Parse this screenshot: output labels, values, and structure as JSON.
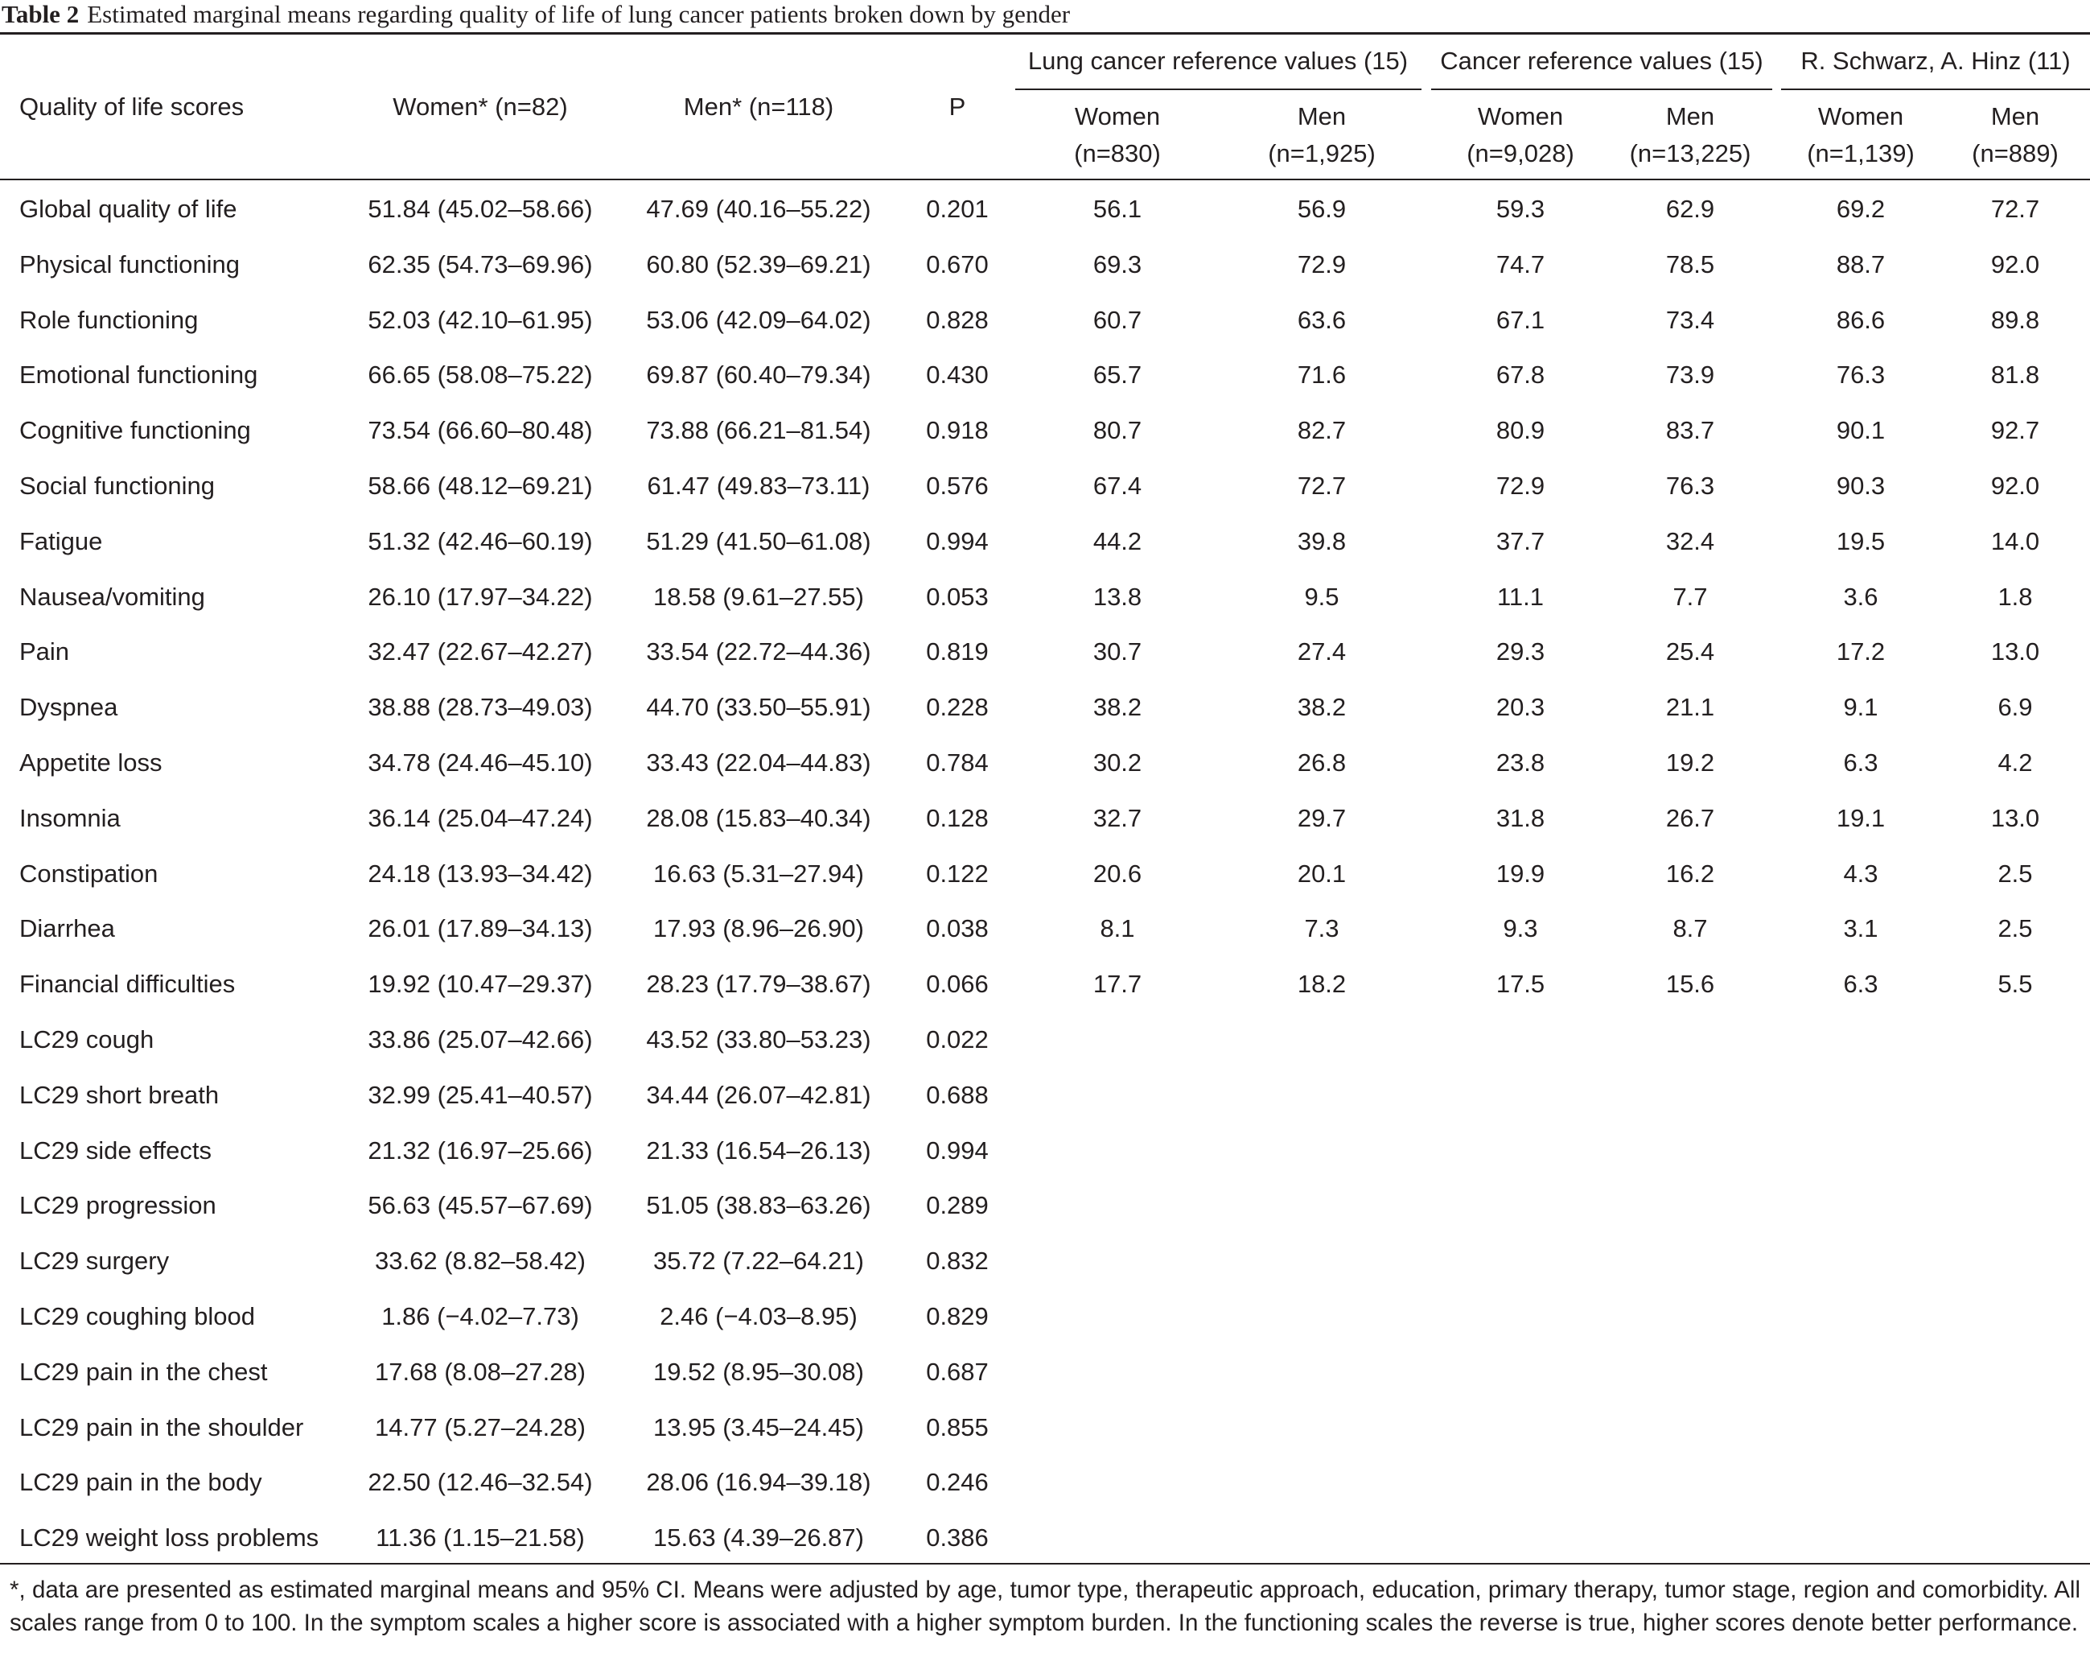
{
  "caption": {
    "label": "Table 2",
    "title": "Estimated marginal means regarding quality of life of lung cancer patients broken down by gender"
  },
  "header": {
    "scores": "Quality of life scores",
    "women": "Women* (n=82)",
    "men": "Men* (n=118)",
    "p": "P",
    "groups": [
      {
        "label": "Lung cancer reference values (15)",
        "women": "Women",
        "women_n": "(n=830)",
        "men": "Men",
        "men_n": "(n=1,925)"
      },
      {
        "label": "Cancer reference values (15)",
        "women": "Women",
        "women_n": "(n=9,028)",
        "men": "Men",
        "men_n": "(n=13,225)"
      },
      {
        "label": "R. Schwarz, A. Hinz (11)",
        "women": "Women",
        "women_n": "(n=1,139)",
        "men": "Men",
        "men_n": "(n=889)"
      }
    ]
  },
  "rows": [
    {
      "name": "Global quality of life",
      "women": "51.84 (45.02–58.66)",
      "men": "47.69 (40.16–55.22)",
      "p": "0.201",
      "lung_w": "56.1",
      "lung_m": "56.9",
      "canc_w": "59.3",
      "canc_m": "62.9",
      "sh_w": "69.2",
      "sh_m": "72.7"
    },
    {
      "name": "Physical functioning",
      "women": "62.35 (54.73–69.96)",
      "men": "60.80 (52.39–69.21)",
      "p": "0.670",
      "lung_w": "69.3",
      "lung_m": "72.9",
      "canc_w": "74.7",
      "canc_m": "78.5",
      "sh_w": "88.7",
      "sh_m": "92.0"
    },
    {
      "name": "Role functioning",
      "women": "52.03 (42.10–61.95)",
      "men": "53.06 (42.09–64.02)",
      "p": "0.828",
      "lung_w": "60.7",
      "lung_m": "63.6",
      "canc_w": "67.1",
      "canc_m": "73.4",
      "sh_w": "86.6",
      "sh_m": "89.8"
    },
    {
      "name": "Emotional functioning",
      "women": "66.65 (58.08–75.22)",
      "men": "69.87 (60.40–79.34)",
      "p": "0.430",
      "lung_w": "65.7",
      "lung_m": "71.6",
      "canc_w": "67.8",
      "canc_m": "73.9",
      "sh_w": "76.3",
      "sh_m": "81.8"
    },
    {
      "name": "Cognitive functioning",
      "women": "73.54 (66.60–80.48)",
      "men": "73.88 (66.21–81.54)",
      "p": "0.918",
      "lung_w": "80.7",
      "lung_m": "82.7",
      "canc_w": "80.9",
      "canc_m": "83.7",
      "sh_w": "90.1",
      "sh_m": "92.7"
    },
    {
      "name": "Social functioning",
      "women": "58.66 (48.12–69.21)",
      "men": "61.47 (49.83–73.11)",
      "p": "0.576",
      "lung_w": "67.4",
      "lung_m": "72.7",
      "canc_w": "72.9",
      "canc_m": "76.3",
      "sh_w": "90.3",
      "sh_m": "92.0"
    },
    {
      "name": "Fatigue",
      "women": "51.32 (42.46–60.19)",
      "men": "51.29 (41.50–61.08)",
      "p": "0.994",
      "lung_w": "44.2",
      "lung_m": "39.8",
      "canc_w": "37.7",
      "canc_m": "32.4",
      "sh_w": "19.5",
      "sh_m": "14.0"
    },
    {
      "name": "Nausea/vomiting",
      "women": "26.10 (17.97–34.22)",
      "men": "18.58 (9.61–27.55)",
      "p": "0.053",
      "lung_w": "13.8",
      "lung_m": "9.5",
      "canc_w": "11.1",
      "canc_m": "7.7",
      "sh_w": "3.6",
      "sh_m": "1.8"
    },
    {
      "name": "Pain",
      "women": "32.47 (22.67–42.27)",
      "men": "33.54 (22.72–44.36)",
      "p": "0.819",
      "lung_w": "30.7",
      "lung_m": "27.4",
      "canc_w": "29.3",
      "canc_m": "25.4",
      "sh_w": "17.2",
      "sh_m": "13.0"
    },
    {
      "name": "Dyspnea",
      "women": "38.88 (28.73–49.03)",
      "men": "44.70 (33.50–55.91)",
      "p": "0.228",
      "lung_w": "38.2",
      "lung_m": "38.2",
      "canc_w": "20.3",
      "canc_m": "21.1",
      "sh_w": "9.1",
      "sh_m": "6.9"
    },
    {
      "name": "Appetite loss",
      "women": "34.78 (24.46–45.10)",
      "men": "33.43 (22.04–44.83)",
      "p": "0.784",
      "lung_w": "30.2",
      "lung_m": "26.8",
      "canc_w": "23.8",
      "canc_m": "19.2",
      "sh_w": "6.3",
      "sh_m": "4.2"
    },
    {
      "name": "Insomnia",
      "women": "36.14 (25.04–47.24)",
      "men": "28.08 (15.83–40.34)",
      "p": "0.128",
      "lung_w": "32.7",
      "lung_m": "29.7",
      "canc_w": "31.8",
      "canc_m": "26.7",
      "sh_w": "19.1",
      "sh_m": "13.0"
    },
    {
      "name": "Constipation",
      "women": "24.18 (13.93–34.42)",
      "men": "16.63 (5.31–27.94)",
      "p": "0.122",
      "lung_w": "20.6",
      "lung_m": "20.1",
      "canc_w": "19.9",
      "canc_m": "16.2",
      "sh_w": "4.3",
      "sh_m": "2.5"
    },
    {
      "name": "Diarrhea",
      "women": "26.01 (17.89–34.13)",
      "men": "17.93 (8.96–26.90)",
      "p": "0.038",
      "lung_w": "8.1",
      "lung_m": "7.3",
      "canc_w": "9.3",
      "canc_m": "8.7",
      "sh_w": "3.1",
      "sh_m": "2.5"
    },
    {
      "name": "Financial difficulties",
      "women": "19.92 (10.47–29.37)",
      "men": "28.23 (17.79–38.67)",
      "p": "0.066",
      "lung_w": "17.7",
      "lung_m": "18.2",
      "canc_w": "17.5",
      "canc_m": "15.6",
      "sh_w": "6.3",
      "sh_m": "5.5"
    },
    {
      "name": "LC29 cough",
      "women": "33.86 (25.07–42.66)",
      "men": "43.52 (33.80–53.23)",
      "p": "0.022",
      "lung_w": "",
      "lung_m": "",
      "canc_w": "",
      "canc_m": "",
      "sh_w": "",
      "sh_m": ""
    },
    {
      "name": "LC29 short breath",
      "women": "32.99 (25.41–40.57)",
      "men": "34.44 (26.07–42.81)",
      "p": "0.688",
      "lung_w": "",
      "lung_m": "",
      "canc_w": "",
      "canc_m": "",
      "sh_w": "",
      "sh_m": ""
    },
    {
      "name": "LC29 side effects",
      "women": "21.32 (16.97–25.66)",
      "men": "21.33 (16.54–26.13)",
      "p": "0.994",
      "lung_w": "",
      "lung_m": "",
      "canc_w": "",
      "canc_m": "",
      "sh_w": "",
      "sh_m": ""
    },
    {
      "name": "LC29 progression",
      "women": "56.63 (45.57–67.69)",
      "men": "51.05 (38.83–63.26)",
      "p": "0.289",
      "lung_w": "",
      "lung_m": "",
      "canc_w": "",
      "canc_m": "",
      "sh_w": "",
      "sh_m": ""
    },
    {
      "name": "LC29 surgery",
      "women": "33.62 (8.82–58.42)",
      "men": "35.72 (7.22–64.21)",
      "p": "0.832",
      "lung_w": "",
      "lung_m": "",
      "canc_w": "",
      "canc_m": "",
      "sh_w": "",
      "sh_m": ""
    },
    {
      "name": "LC29 coughing blood",
      "women": "1.86 (−4.02–7.73)",
      "men": "2.46 (−4.03–8.95)",
      "p": "0.829",
      "lung_w": "",
      "lung_m": "",
      "canc_w": "",
      "canc_m": "",
      "sh_w": "",
      "sh_m": ""
    },
    {
      "name": "LC29 pain in the chest",
      "women": "17.68 (8.08–27.28)",
      "men": "19.52 (8.95–30.08)",
      "p": "0.687",
      "lung_w": "",
      "lung_m": "",
      "canc_w": "",
      "canc_m": "",
      "sh_w": "",
      "sh_m": ""
    },
    {
      "name": "LC29 pain in the shoulder",
      "women": "14.77 (5.27–24.28)",
      "men": "13.95 (3.45–24.45)",
      "p": "0.855",
      "lung_w": "",
      "lung_m": "",
      "canc_w": "",
      "canc_m": "",
      "sh_w": "",
      "sh_m": ""
    },
    {
      "name": "LC29 pain in the body",
      "women": "22.50 (12.46–32.54)",
      "men": "28.06 (16.94–39.18)",
      "p": "0.246",
      "lung_w": "",
      "lung_m": "",
      "canc_w": "",
      "canc_m": "",
      "sh_w": "",
      "sh_m": ""
    },
    {
      "name": "LC29 weight loss problems",
      "women": "11.36 (1.15–21.58)",
      "men": "15.63 (4.39–26.87)",
      "p": "0.386",
      "lung_w": "",
      "lung_m": "",
      "canc_w": "",
      "canc_m": "",
      "sh_w": "",
      "sh_m": ""
    }
  ],
  "footnote": "*, data are presented as estimated marginal means and 95% CI. Means were adjusted by age, tumor type, therapeutic approach, education, primary therapy, tumor stage, region and comorbidity. All scales range from 0 to 100. In the symptom scales a higher score is associated with a higher symptom burden. In the functioning scales the reverse is true, higher scores denote better performance."
}
